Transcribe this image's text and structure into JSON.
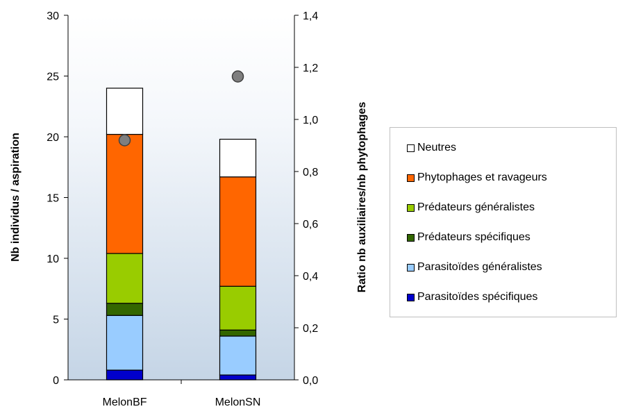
{
  "chart_data": {
    "type": "bar",
    "stacked": true,
    "categories": [
      "MelonBF",
      "MelonSN"
    ],
    "series": [
      {
        "name": "Parasitoïdes spécifiques",
        "color": "#0000cc",
        "values": [
          0.8,
          0.4
        ]
      },
      {
        "name": "Parasitoïdes généralistes",
        "color": "#99ccff",
        "values": [
          4.5,
          3.2
        ]
      },
      {
        "name": "Prédateurs spécifiques",
        "color": "#336600",
        "values": [
          1.0,
          0.5
        ]
      },
      {
        "name": "Prédateurs généralistes",
        "color": "#99cc00",
        "values": [
          4.1,
          3.6
        ]
      },
      {
        "name": "Phytophages et ravageurs",
        "color": "#ff6600",
        "values": [
          9.8,
          9.0
        ]
      },
      {
        "name": "Neutres",
        "color": "#ffffff",
        "values": [
          3.8,
          3.1
        ]
      }
    ],
    "ratio_series": {
      "name": "",
      "color": "#7f7f7f",
      "values": [
        0.92,
        1.165
      ]
    },
    "legend_order": [
      5,
      4,
      3,
      2,
      1,
      0
    ],
    "legend_position": "right",
    "ylabel": "Nb individus / aspiration",
    "y2label": "Ratio nb auxiliaires/nb phytophages",
    "ylim": [
      0,
      30
    ],
    "y2lim": [
      0,
      1.4
    ],
    "yticks": [
      "0",
      "5",
      "10",
      "15",
      "20",
      "25",
      "30"
    ],
    "y2ticks": [
      "0,0",
      "0,2",
      "0,4",
      "0,6",
      "0,8",
      "1,0",
      "1,2",
      "1,4"
    ],
    "grid": false,
    "plot_background": "gradient white to light blue"
  }
}
